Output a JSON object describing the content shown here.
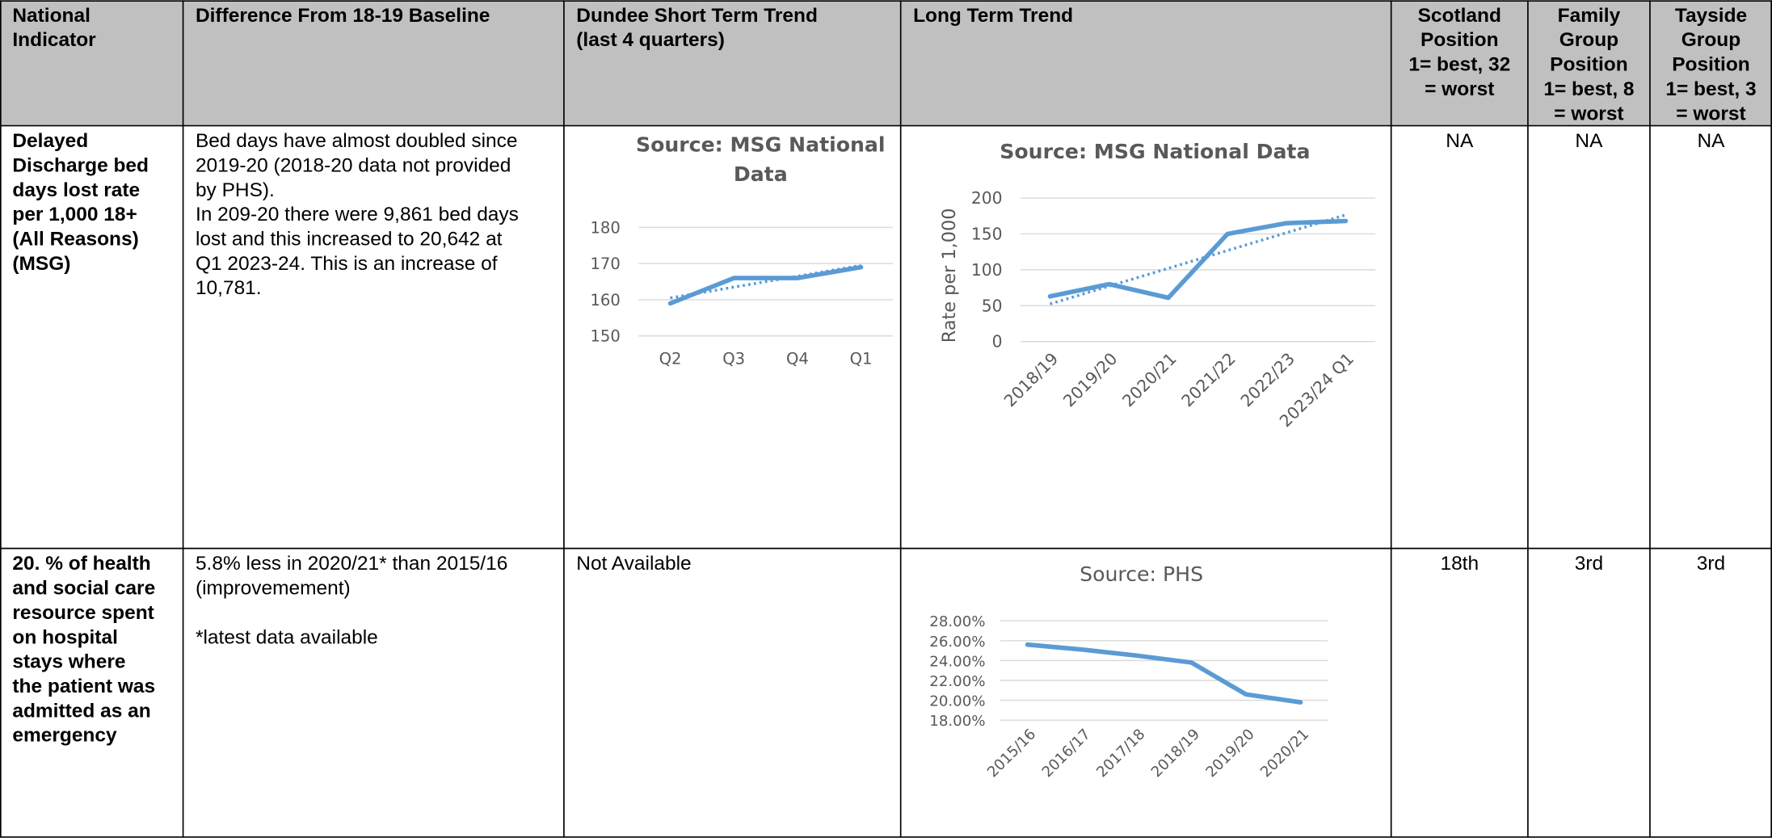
{
  "table": {
    "header": [
      [
        [
          "National",
          "Indicator"
        ]
      ],
      [
        [
          "Difference From 18-19 Baseline"
        ]
      ],
      [
        [
          "Dundee Short Term Trend",
          "(last 4 quarters)"
        ]
      ],
      [
        [
          "Long Term Trend"
        ]
      ],
      [
        [
          "Scotland",
          "Position",
          "1= best, 32",
          "= worst"
        ]
      ],
      [
        [
          "Family",
          "Group",
          "Position",
          "1= best, 8",
          "= worst"
        ]
      ],
      [
        [
          "Tayside",
          "Group",
          "Position",
          "1= best, 3",
          "= worst"
        ]
      ]
    ],
    "rows": [
      {
        "cells": [
          [
            [
              "Delayed",
              "Discharge bed",
              "days lost rate",
              "per 1,000 18+",
              "(All Reasons)",
              "(MSG)"
            ]
          ],
          [
            [
              "Bed days have almost doubled since",
              "2019-20 (2018-20 data not provided",
              "by PHS).",
              "In 209-20 there were 9,861 bed days",
              "lost and this increased to 20,642 at",
              "Q1 2023-24.  This is an increase of",
              "10,781."
            ]
          ],
          [],
          [],
          [
            [
              "NA"
            ]
          ],
          [
            [
              "NA"
            ]
          ],
          [
            [
              "NA"
            ]
          ]
        ]
      },
      {
        "cells": [
          [
            [
              "20. % of health",
              "and social care",
              "resource spent",
              "on hospital",
              "stays where",
              "the patient was",
              "admitted as an",
              "emergency"
            ]
          ],
          [
            [
              "5.8% less in 2020/21* than 2015/16",
              "(improvemement)"
            ],
            [
              "*latest data available"
            ]
          ],
          [
            [
              "Not Available"
            ]
          ],
          [],
          [
            [
              "18th"
            ]
          ],
          [
            [
              "3rd"
            ]
          ],
          [
            [
              "3rd"
            ]
          ]
        ]
      }
    ]
  },
  "chart_data": [
    {
      "type": "line",
      "title": [
        "Source: MSG National",
        "Data"
      ],
      "title_bold": true,
      "categories": [
        "Q2",
        "Q3",
        "Q4",
        "Q1"
      ],
      "values": [
        159,
        166,
        166,
        169
      ],
      "color": "#5b9bd5",
      "ylim": [
        150,
        180
      ],
      "yticks": [
        150,
        160,
        170,
        180
      ],
      "grid": true,
      "trendline": true
    },
    {
      "type": "line",
      "title": [
        "Source: MSG National Data"
      ],
      "title_bold": true,
      "y_label": "Rate per 1,000",
      "categories": [
        "2018/19",
        "2019/20",
        "2020/21",
        "2021/22",
        "2022/23",
        "2023/24 Q1"
      ],
      "values": [
        63,
        80,
        61,
        150,
        165,
        168
      ],
      "color": "#5b9bd5",
      "ylim": [
        0,
        200
      ],
      "yticks": [
        0,
        50,
        100,
        150,
        200
      ],
      "grid": true,
      "trendline": true
    },
    {
      "type": "line",
      "title": [
        "Source: PHS"
      ],
      "title_bold": false,
      "categories": [
        "2015/16",
        "2016/17",
        "2017/18",
        "2018/19",
        "2019/20",
        "2020/21"
      ],
      "values": [
        25.6,
        25.1,
        24.5,
        23.8,
        20.6,
        19.8
      ],
      "color": "#5b9bd5",
      "ylim": [
        18,
        28
      ],
      "yticks": [
        {
          "value": 18,
          "label": "18.00%"
        },
        {
          "value": 20,
          "label": "20.00%"
        },
        {
          "value": 22,
          "label": "22.00%"
        },
        {
          "value": 24,
          "label": "24.00%"
        },
        {
          "value": 26,
          "label": "26.00%"
        },
        {
          "value": 28,
          "label": "28.00%"
        }
      ],
      "grid": true,
      "trendline": false
    }
  ]
}
